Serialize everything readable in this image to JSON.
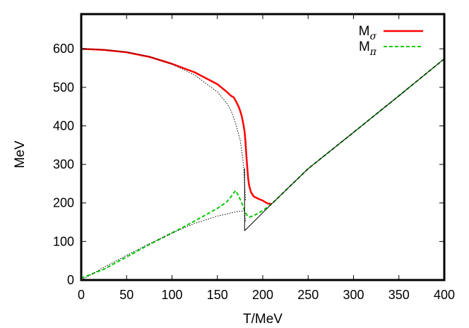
{
  "chart_data": {
    "type": "line",
    "xlabel": "T/MeV",
    "ylabel": "MeV",
    "xlim": [
      0,
      400
    ],
    "ylim": [
      0,
      690
    ],
    "x_ticks": [
      0,
      50,
      100,
      150,
      200,
      250,
      300,
      350,
      400
    ],
    "y_ticks": [
      0,
      100,
      200,
      300,
      400,
      500,
      600
    ],
    "grid": false,
    "legend_position": "top-right",
    "series": [
      {
        "name": "M",
        "name_sub": "σ",
        "color": "#ff0000",
        "style": "solid",
        "x": [
          0,
          25,
          50,
          75,
          100,
          125,
          150,
          160,
          165,
          168,
          170,
          173,
          175,
          177,
          178,
          179,
          180,
          181,
          182,
          183,
          184,
          185,
          187,
          190,
          195,
          200,
          205,
          210
        ],
        "y": [
          600,
          597,
          591,
          579,
          561,
          539,
          508,
          489,
          478,
          474,
          466,
          452,
          440,
          424,
          412,
          400,
          385,
          357,
          320,
          290,
          262,
          245,
          228,
          217,
          211,
          206,
          199,
          197
        ]
      },
      {
        "name": "M",
        "name_sub": "π",
        "color": "#00cc00",
        "style": "dashed",
        "x": [
          0,
          25,
          50,
          75,
          100,
          125,
          150,
          160,
          165,
          170,
          172,
          175,
          178,
          180,
          182,
          185,
          190,
          200,
          210,
          250,
          300,
          350,
          400
        ],
        "y": [
          5,
          28,
          60,
          92,
          122,
          153,
          186,
          202,
          216,
          232,
          224,
          210,
          194,
          180,
          170,
          163,
          167,
          180,
          198,
          289,
          383,
          478,
          574
        ]
      },
      {
        "color": "#000000",
        "style": "dotted",
        "x": [
          0,
          25,
          50,
          75,
          100,
          125,
          150,
          160,
          165,
          170,
          175,
          178,
          179,
          180,
          181
        ],
        "y": [
          600,
          598,
          592,
          580,
          560,
          532,
          488,
          460,
          440,
          408,
          364,
          318,
          290,
          250,
          205
        ]
      },
      {
        "color": "#000000",
        "style": "dotted",
        "x": [
          0,
          25,
          50,
          75,
          100,
          125,
          150,
          160,
          170,
          175,
          180,
          181
        ],
        "y": [
          0,
          33,
          64,
          94,
          122,
          147,
          166,
          171,
          177,
          179,
          179,
          150
        ]
      },
      {
        "color": "#000000",
        "style": "solid",
        "x": [
          180,
          210,
          250,
          300,
          350,
          400
        ],
        "y": [
          128,
          198,
          289,
          383,
          478,
          574
        ]
      },
      {
        "color": "#000000",
        "style": "solid",
        "x": [
          180,
          180
        ],
        "y": [
          290,
          128
        ]
      }
    ]
  }
}
